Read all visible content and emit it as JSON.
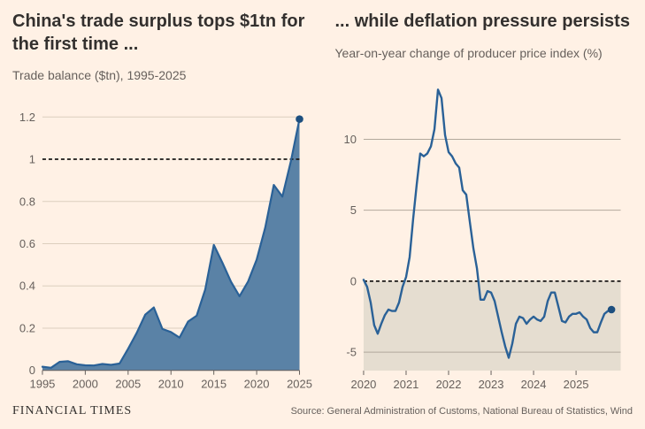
{
  "page": {
    "background": "#fff1e5"
  },
  "panels": {
    "left": {
      "title": "China's trade surplus tops $1tn for the first time ...",
      "subtitle": "Trade balance ($tn), 1995-2025"
    },
    "right": {
      "title": "... while deflation pressure persists",
      "subtitle": "Year-on-year change of producer price index (%)"
    }
  },
  "footer": {
    "brand": "FINANCIAL TIMES",
    "source": "Source: General Administration of Customs, National Bureau of Statistics, Wind"
  },
  "chart_data": [
    {
      "type": "area",
      "title": "China's trade surplus tops $1tn for the first time ...",
      "subtitle": "Trade balance ($tn), 1995-2025",
      "x_unit": "year",
      "x_start": 1995,
      "x_step": 1,
      "values": [
        0.017,
        0.012,
        0.04,
        0.043,
        0.029,
        0.024,
        0.023,
        0.03,
        0.026,
        0.032,
        0.102,
        0.177,
        0.264,
        0.298,
        0.196,
        0.181,
        0.155,
        0.231,
        0.259,
        0.383,
        0.594,
        0.51,
        0.42,
        0.351,
        0.421,
        0.524,
        0.676,
        0.878,
        0.823,
        0.992,
        1.19
      ],
      "xlim": [
        1995,
        2025
      ],
      "ylim": [
        0,
        1.28
      ],
      "xticks": [
        1995,
        2000,
        2005,
        2010,
        2015,
        2020,
        2025
      ],
      "yticks": [
        0,
        0.2,
        0.4,
        0.6,
        0.8,
        1,
        1.2
      ],
      "ytick_labels": [
        "0",
        "0.2",
        "0.4",
        "0.6",
        "0.8",
        "1",
        "1.2"
      ],
      "reference_line": 1,
      "shade_below_zero": false,
      "end_marker": {
        "x": 2025,
        "y": 1.19
      },
      "colors": {
        "fill": "#5a82a6",
        "stroke": "#2a6197",
        "marker": "#1d4f7f",
        "grid": "#dccfbe"
      }
    },
    {
      "type": "line",
      "title": "... while deflation pressure persists",
      "subtitle": "Year-on-year change of producer price index (%)",
      "x_unit": "month",
      "x_start": 2020,
      "x_step": 0.0833333,
      "values": [
        0.1,
        -0.4,
        -1.5,
        -3.1,
        -3.7,
        -3.0,
        -2.4,
        -2.0,
        -2.1,
        -2.1,
        -1.5,
        -0.4,
        0.3,
        1.7,
        4.4,
        6.8,
        9.0,
        8.8,
        9.0,
        9.5,
        10.7,
        13.5,
        12.9,
        10.3,
        9.1,
        8.8,
        8.3,
        8.0,
        6.4,
        6.1,
        4.2,
        2.3,
        0.9,
        -1.3,
        -1.3,
        -0.7,
        -0.8,
        -1.4,
        -2.5,
        -3.6,
        -4.6,
        -5.4,
        -4.4,
        -3.0,
        -2.5,
        -2.6,
        -3.0,
        -2.7,
        -2.5,
        -2.7,
        -2.8,
        -2.5,
        -1.4,
        -0.8,
        -0.8,
        -1.8,
        -2.8,
        -2.9,
        -2.5,
        -2.3,
        -2.3,
        -2.2,
        -2.5,
        -2.7,
        -3.3,
        -3.6,
        -3.6,
        -2.9,
        -2.3,
        -2.1,
        -2.0
      ],
      "xlim": [
        2020,
        2026.05
      ],
      "ylim": [
        -6.3,
        14.3
      ],
      "xticks": [
        2020,
        2021,
        2022,
        2023,
        2024,
        2025
      ],
      "yticks": [
        -5,
        0,
        5,
        10
      ],
      "ytick_labels": [
        "-5",
        "0",
        "5",
        "10"
      ],
      "reference_line": 0,
      "shade_below_zero": true,
      "end_marker": {
        "x": 2025.833,
        "y": -2.0
      },
      "colors": {
        "stroke": "#2a6197",
        "marker": "#1d4f7f",
        "grid": "#b2a99c",
        "shade": "#e5ddd0"
      }
    }
  ]
}
